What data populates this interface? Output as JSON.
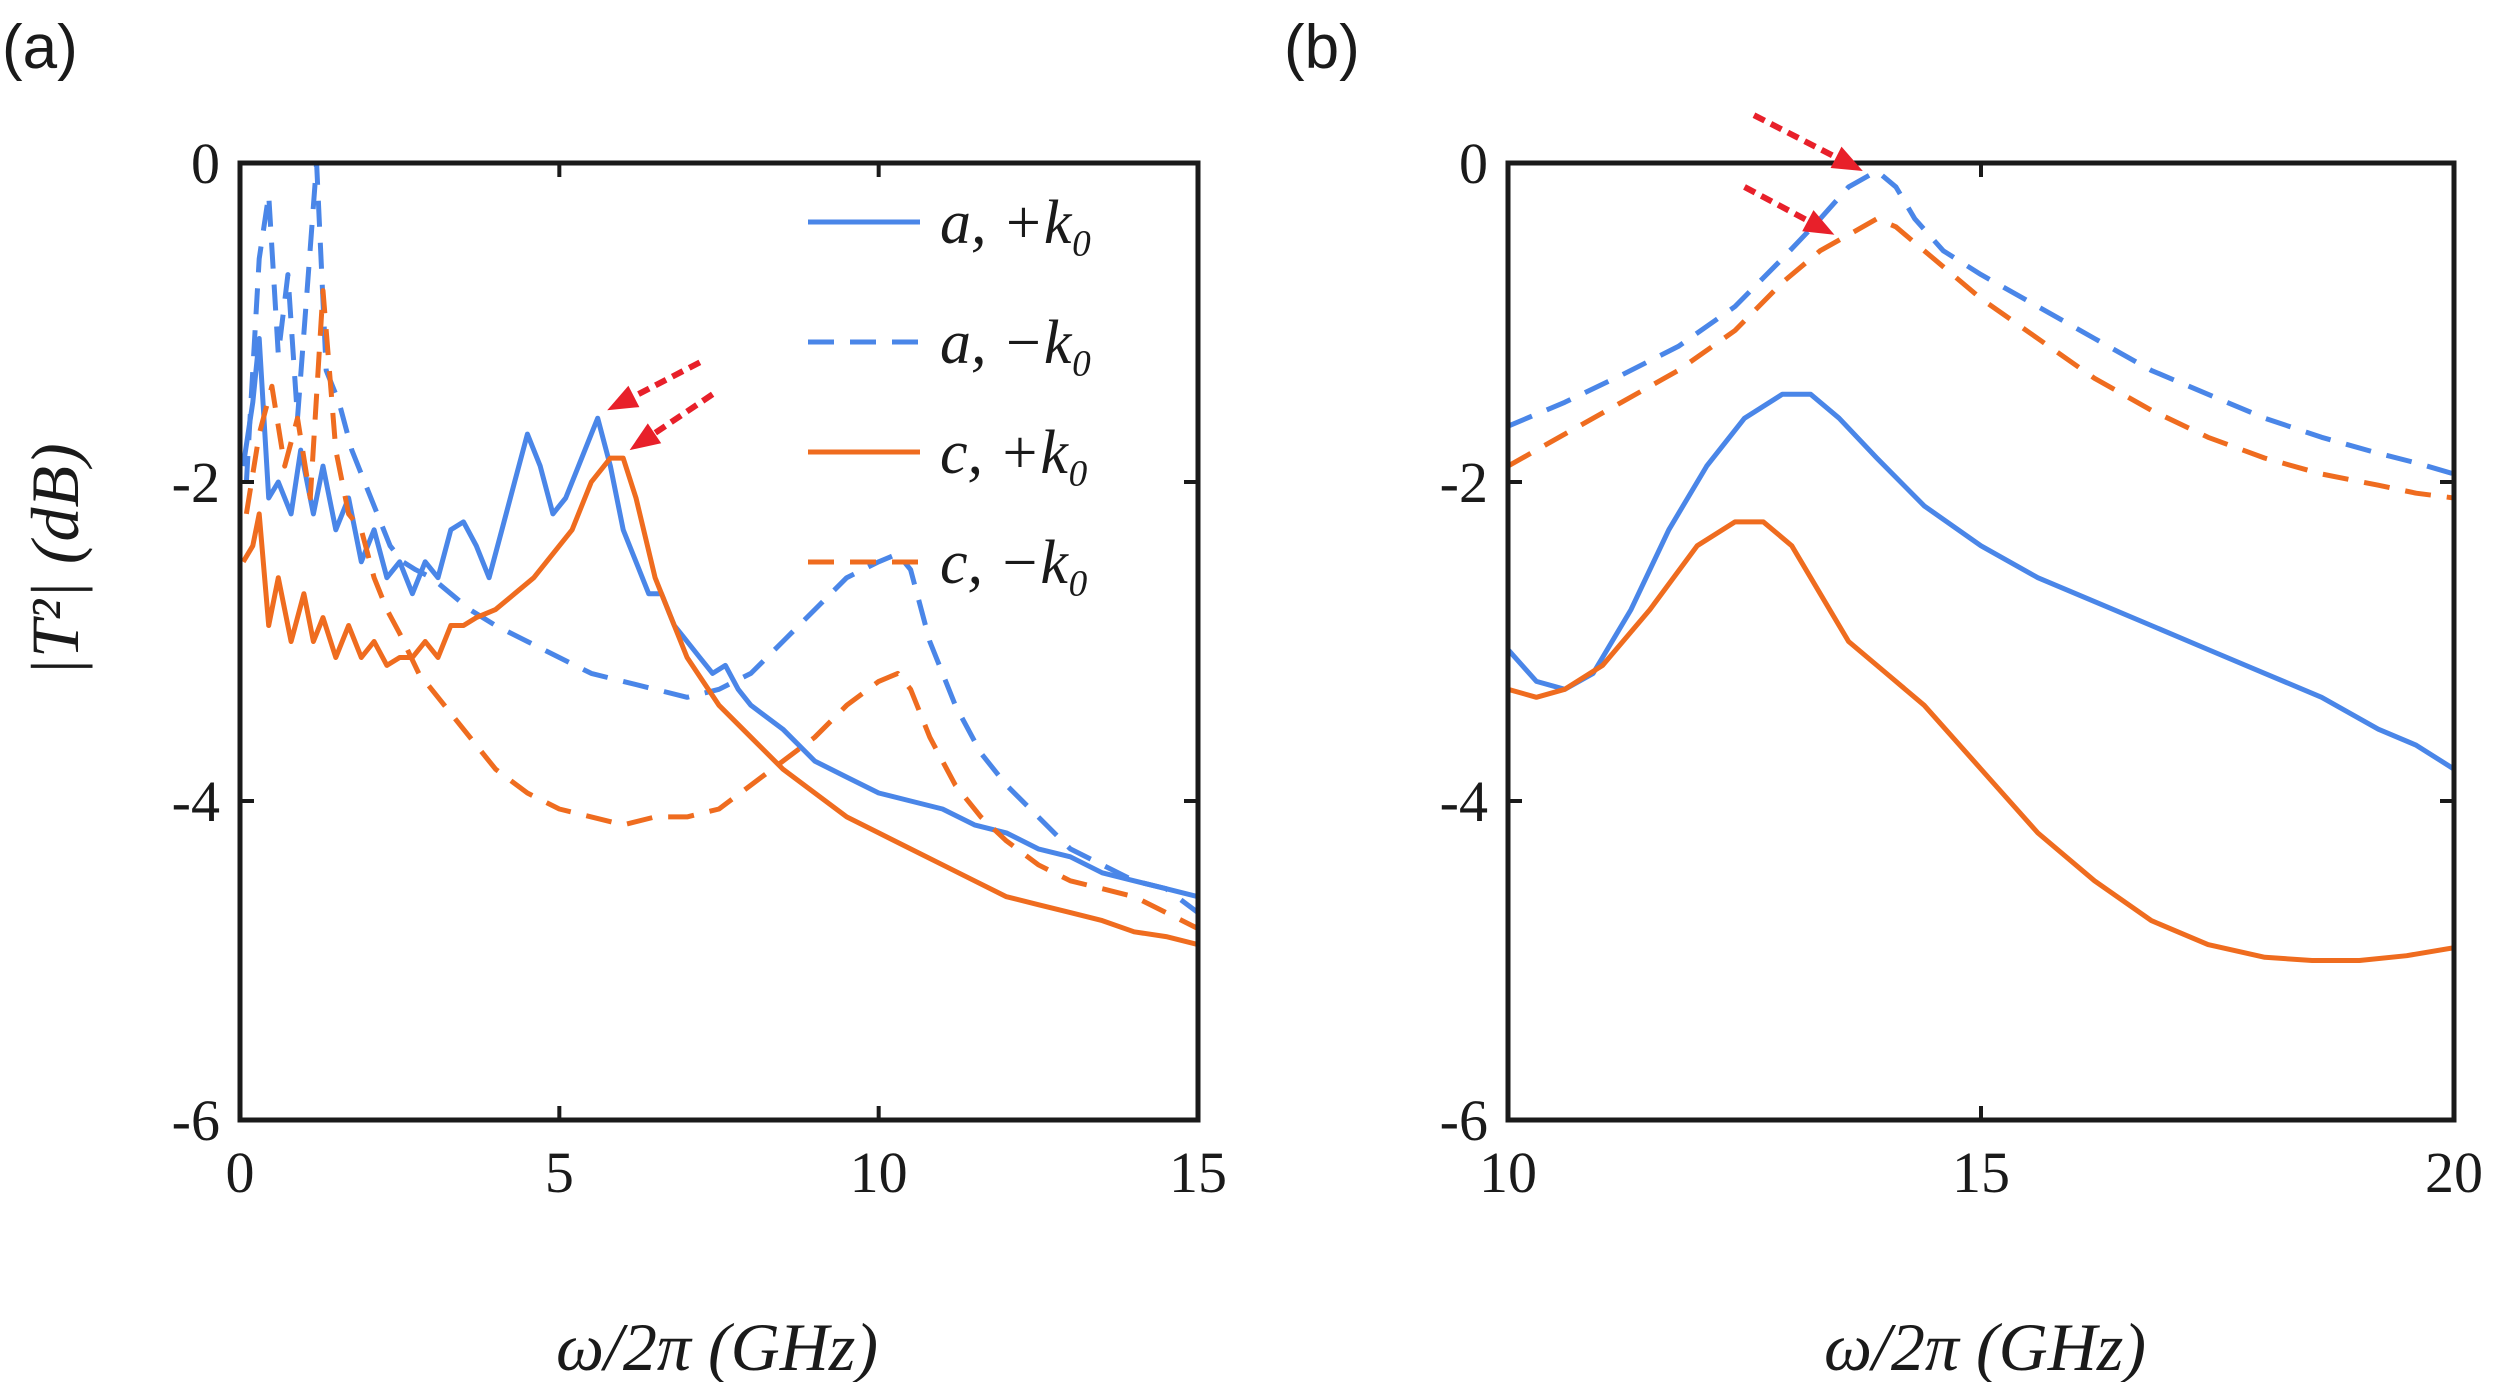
{
  "colors": {
    "blue": "#4a86e8",
    "orange": "#ef6c1f",
    "arrow": "#e8202a",
    "axis": "#1a1a1a"
  },
  "chart_data": [
    {
      "panel_label": "(a)",
      "type": "line",
      "xlabel": "ω/2π (GHz)",
      "ylabel": "|T²| (dB)",
      "xlim": [
        0,
        15
      ],
      "ylim": [
        -6,
        0
      ],
      "xticks": [
        0,
        5,
        10,
        15
      ],
      "yticks": [
        0,
        -2,
        -4,
        -6
      ],
      "xtick_labels": [
        "0",
        "5",
        "10",
        "15"
      ],
      "ytick_labels": [
        "0",
        "-2",
        "-4",
        "-6"
      ],
      "legend": {
        "placement": "top-right",
        "entries": [
          "a, +k₀",
          "a, −k₀",
          "c, +k₀",
          "c, −k₀"
        ]
      },
      "series": [
        {
          "name": "a, +k₀",
          "color": "#4a86e8",
          "dash": "solid",
          "x": [
            0.05,
            0.2,
            0.3,
            0.45,
            0.6,
            0.8,
            0.95,
            1.15,
            1.3,
            1.5,
            1.7,
            1.9,
            2.1,
            2.3,
            2.5,
            2.7,
            2.9,
            3.1,
            3.3,
            3.5,
            3.7,
            3.9,
            4.1,
            4.3,
            4.5,
            4.7,
            4.9,
            5.1,
            5.3,
            5.5,
            5.6,
            5.8,
            6.0,
            6.2,
            6.4,
            6.6,
            6.8,
            7.0,
            7.2,
            7.4,
            7.6,
            7.8,
            8.0,
            8.5,
            9.0,
            9.5,
            10.0,
            10.5,
            11.0,
            11.5,
            12.0,
            12.5,
            13.0,
            13.5,
            14.0,
            14.5,
            15.0
          ],
          "y": [
            -1.9,
            -1.5,
            -1.1,
            -2.1,
            -2.0,
            -2.2,
            -1.8,
            -2.2,
            -1.9,
            -2.3,
            -2.1,
            -2.5,
            -2.3,
            -2.6,
            -2.5,
            -2.7,
            -2.5,
            -2.6,
            -2.3,
            -2.25,
            -2.4,
            -2.6,
            -2.3,
            -2.0,
            -1.7,
            -1.9,
            -2.2,
            -2.1,
            -1.9,
            -1.7,
            -1.6,
            -1.9,
            -2.3,
            -2.5,
            -2.7,
            -2.7,
            -2.9,
            -3.0,
            -3.1,
            -3.2,
            -3.15,
            -3.3,
            -3.4,
            -3.55,
            -3.75,
            -3.85,
            -3.95,
            -4.0,
            -4.05,
            -4.15,
            -4.2,
            -4.3,
            -4.35,
            -4.45,
            -4.5,
            -4.55,
            -4.6
          ]
        },
        {
          "name": "a, −k₀",
          "color": "#4a86e8",
          "dash": "dashed",
          "x": [
            0.1,
            0.3,
            0.45,
            0.6,
            0.75,
            0.9,
            1.05,
            1.2,
            1.35,
            1.55,
            1.75,
            1.95,
            2.15,
            2.35,
            2.55,
            2.75,
            3.0,
            3.3,
            3.6,
            4.0,
            4.5,
            5.0,
            5.5,
            6.0,
            6.5,
            7.0,
            7.5,
            8.0,
            8.5,
            9.0,
            9.5,
            10.0,
            10.3,
            10.5,
            10.8,
            11.2,
            11.6,
            12.0,
            12.5,
            13.0,
            13.5,
            14.0,
            14.5,
            15.0
          ],
          "y": [
            -2.0,
            -0.6,
            -0.2,
            -1.2,
            -0.7,
            -1.6,
            -0.8,
            0.0,
            -1.3,
            -1.5,
            -1.8,
            -2.0,
            -2.2,
            -2.4,
            -2.5,
            -2.55,
            -2.6,
            -2.7,
            -2.8,
            -2.9,
            -3.0,
            -3.1,
            -3.2,
            -3.25,
            -3.3,
            -3.35,
            -3.3,
            -3.2,
            -3.0,
            -2.8,
            -2.6,
            -2.5,
            -2.45,
            -2.55,
            -3.0,
            -3.4,
            -3.7,
            -3.9,
            -4.1,
            -4.3,
            -4.4,
            -4.5,
            -4.55,
            -4.7
          ]
        },
        {
          "name": "c, +k₀",
          "color": "#ef6c1f",
          "dash": "solid",
          "x": [
            0.05,
            0.2,
            0.3,
            0.45,
            0.6,
            0.8,
            1.0,
            1.15,
            1.3,
            1.5,
            1.7,
            1.9,
            2.1,
            2.3,
            2.5,
            2.7,
            2.9,
            3.1,
            3.3,
            3.5,
            3.7,
            4.0,
            4.3,
            4.6,
            4.9,
            5.2,
            5.5,
            5.8,
            6.0,
            6.2,
            6.5,
            7.0,
            7.5,
            8.0,
            8.5,
            9.0,
            9.5,
            10.0,
            10.5,
            11.0,
            11.5,
            12.0,
            12.5,
            13.0,
            13.5,
            14.0,
            14.5,
            15.0
          ],
          "y": [
            -2.5,
            -2.4,
            -2.2,
            -2.9,
            -2.6,
            -3.0,
            -2.7,
            -3.0,
            -2.85,
            -3.1,
            -2.9,
            -3.1,
            -3.0,
            -3.15,
            -3.1,
            -3.1,
            -3.0,
            -3.1,
            -2.9,
            -2.9,
            -2.85,
            -2.8,
            -2.7,
            -2.6,
            -2.45,
            -2.3,
            -2.0,
            -1.85,
            -1.85,
            -2.1,
            -2.6,
            -3.1,
            -3.4,
            -3.6,
            -3.8,
            -3.95,
            -4.1,
            -4.2,
            -4.3,
            -4.4,
            -4.5,
            -4.6,
            -4.65,
            -4.7,
            -4.75,
            -4.82,
            -4.85,
            -4.9
          ]
        },
        {
          "name": "c, −k₀",
          "color": "#ef6c1f",
          "dash": "dashed",
          "x": [
            0.1,
            0.3,
            0.5,
            0.7,
            0.9,
            1.1,
            1.3,
            1.5,
            1.7,
            1.9,
            2.1,
            2.3,
            2.5,
            2.8,
            3.2,
            3.6,
            4.0,
            4.5,
            5.0,
            5.5,
            6.0,
            6.5,
            7.0,
            7.5,
            8.0,
            8.5,
            9.0,
            9.5,
            10.0,
            10.3,
            10.5,
            10.8,
            11.2,
            11.6,
            12.0,
            12.5,
            13.0,
            13.5,
            14.0,
            14.5,
            15.0
          ],
          "y": [
            -2.2,
            -1.7,
            -1.4,
            -1.9,
            -1.6,
            -2.1,
            -0.8,
            -1.8,
            -2.2,
            -2.3,
            -2.6,
            -2.8,
            -2.95,
            -3.2,
            -3.4,
            -3.6,
            -3.8,
            -3.95,
            -4.05,
            -4.1,
            -4.15,
            -4.1,
            -4.1,
            -4.05,
            -3.9,
            -3.75,
            -3.6,
            -3.4,
            -3.25,
            -3.2,
            -3.3,
            -3.6,
            -3.9,
            -4.1,
            -4.25,
            -4.4,
            -4.5,
            -4.55,
            -4.6,
            -4.7,
            -4.8
          ]
        }
      ],
      "annotations": [
        {
          "kind": "arrow",
          "x1": 7.2,
          "y1": -1.25,
          "x2": 5.75,
          "y2": -1.55
        },
        {
          "kind": "arrow",
          "x1": 7.4,
          "y1": -1.45,
          "x2": 6.1,
          "y2": -1.8
        }
      ]
    },
    {
      "panel_label": "(b)",
      "type": "line",
      "xlabel": "ω/2π (GHz)",
      "ylabel": "",
      "xlim": [
        10,
        20
      ],
      "ylim": [
        -6,
        0
      ],
      "xticks": [
        10,
        15,
        20
      ],
      "yticks": [
        0,
        -2,
        -4,
        -6
      ],
      "xtick_labels": [
        "10",
        "15",
        "20"
      ],
      "ytick_labels": [
        "0",
        "-2",
        "-4",
        "-6"
      ],
      "series": [
        {
          "name": "a, +k₀",
          "color": "#4a86e8",
          "dash": "solid",
          "x": [
            10.0,
            10.3,
            10.6,
            10.9,
            11.3,
            11.7,
            12.1,
            12.5,
            12.9,
            13.2,
            13.5,
            13.9,
            14.4,
            15.0,
            15.6,
            16.2,
            16.8,
            17.4,
            18.0,
            18.6,
            19.2,
            19.6,
            20.0
          ],
          "y": [
            -3.05,
            -3.25,
            -3.3,
            -3.2,
            -2.8,
            -2.3,
            -1.9,
            -1.6,
            -1.45,
            -1.45,
            -1.6,
            -1.85,
            -2.15,
            -2.4,
            -2.6,
            -2.75,
            -2.9,
            -3.05,
            -3.2,
            -3.35,
            -3.55,
            -3.65,
            -3.8
          ]
        },
        {
          "name": "a, −k₀",
          "color": "#4a86e8",
          "dash": "dashed",
          "x": [
            10.0,
            10.6,
            11.2,
            11.8,
            12.4,
            12.9,
            13.3,
            13.6,
            13.9,
            14.1,
            14.3,
            14.6,
            15.0,
            15.6,
            16.2,
            16.8,
            17.4,
            18.0,
            18.6,
            19.2,
            19.6,
            20.0
          ],
          "y": [
            -1.65,
            -1.5,
            -1.33,
            -1.15,
            -0.9,
            -0.6,
            -0.35,
            -0.15,
            -0.05,
            -0.15,
            -0.35,
            -0.55,
            -0.7,
            -0.9,
            -1.1,
            -1.3,
            -1.45,
            -1.6,
            -1.72,
            -1.82,
            -1.88,
            -1.95
          ]
        },
        {
          "name": "c, +k₀",
          "color": "#ef6c1f",
          "dash": "solid",
          "x": [
            10.0,
            10.3,
            10.6,
            11.0,
            11.5,
            12.0,
            12.4,
            12.7,
            13.0,
            13.3,
            13.6,
            14.0,
            14.4,
            15.0,
            15.6,
            16.2,
            16.8,
            17.4,
            18.0,
            18.5,
            19.0,
            19.5,
            20.0
          ],
          "y": [
            -3.3,
            -3.35,
            -3.3,
            -3.15,
            -2.8,
            -2.4,
            -2.25,
            -2.25,
            -2.4,
            -2.7,
            -3.0,
            -3.2,
            -3.4,
            -3.8,
            -4.2,
            -4.5,
            -4.75,
            -4.9,
            -4.98,
            -5.0,
            -5.0,
            -4.97,
            -4.92
          ]
        },
        {
          "name": "c, −k₀",
          "color": "#ef6c1f",
          "dash": "dashed",
          "x": [
            10.0,
            10.6,
            11.2,
            11.8,
            12.4,
            12.9,
            13.3,
            13.6,
            13.9,
            14.1,
            14.3,
            14.6,
            15.0,
            15.6,
            16.2,
            16.8,
            17.4,
            18.0,
            18.6,
            19.2,
            19.6,
            20.0
          ],
          "y": [
            -1.9,
            -1.7,
            -1.5,
            -1.3,
            -1.05,
            -0.75,
            -0.55,
            -0.45,
            -0.35,
            -0.4,
            -0.5,
            -0.65,
            -0.85,
            -1.1,
            -1.35,
            -1.55,
            -1.72,
            -1.85,
            -1.95,
            -2.02,
            -2.07,
            -2.1
          ]
        }
      ],
      "annotations": [
        {
          "kind": "arrow",
          "x1": 12.6,
          "y1": 0.3,
          "x2": 13.75,
          "y2": -0.05
        },
        {
          "kind": "arrow",
          "x1": 12.5,
          "y1": -0.15,
          "x2": 13.45,
          "y2": -0.45
        }
      ]
    }
  ]
}
